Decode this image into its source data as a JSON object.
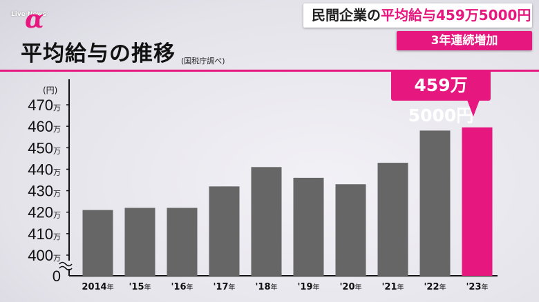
{
  "broadcast": {
    "logo_text": "Live News",
    "logo_symbol": "α",
    "headline_prefix": "民間企業の",
    "headline_emphasis": "平均給与459万5000円",
    "subheadline": "3年連続増加",
    "accent_color": "#e6177e"
  },
  "chart_data": {
    "type": "bar",
    "title": "平均給与の推移",
    "source_note": "(国税庁調べ)",
    "y_unit_label": "(円)",
    "categories": [
      "2014年",
      "'15年",
      "'16年",
      "'17年",
      "'18年",
      "'19年",
      "'20年",
      "'21年",
      "'22年",
      "'23年"
    ],
    "values": [
      4210000,
      4220000,
      4220000,
      4320000,
      4410000,
      4360000,
      4330000,
      4430000,
      4580000,
      4595000
    ],
    "y_ticks": [
      "0",
      "400万",
      "410万",
      "420万",
      "430万",
      "440万",
      "450万",
      "460万",
      "470万"
    ],
    "ylim": [
      4000000,
      4730000
    ],
    "axis_break": true,
    "bar_color": "#666666",
    "highlight_color": "#e6177e",
    "highlight_index": 9,
    "callout_label": "459万5000円"
  }
}
